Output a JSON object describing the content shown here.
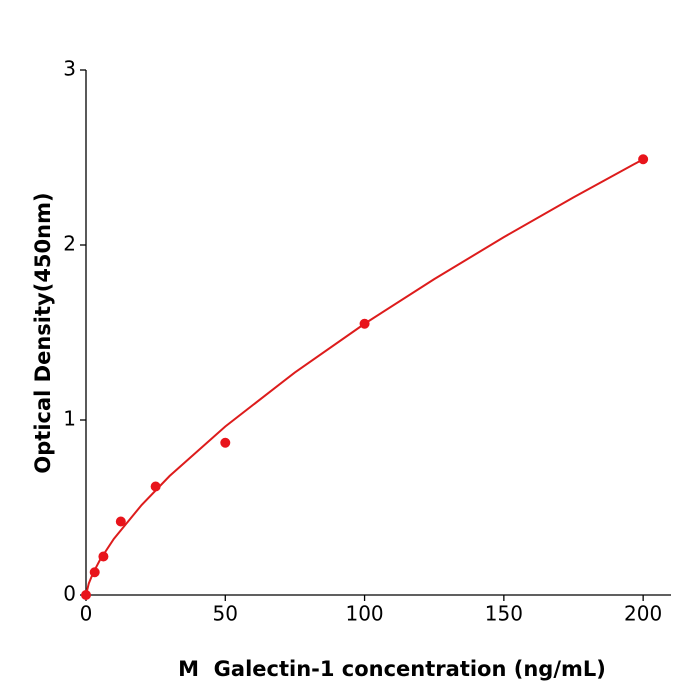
{
  "chart_data": {
    "type": "scatter",
    "x_label": "M  Galectin-1 concentration (ng/mL)",
    "y_label": "Optical Density(450nm)",
    "xlim": [
      0,
      210
    ],
    "ylim": [
      0,
      3
    ],
    "xticks": [
      0,
      50,
      100,
      150,
      200
    ],
    "yticks": [
      0,
      1,
      2,
      3
    ],
    "grid": false,
    "series": [
      {
        "color": "#e8141b",
        "x": [
          0,
          3.125,
          6.25,
          12.5,
          25,
          50,
          100,
          200
        ],
        "values": [
          0,
          0.13,
          0.22,
          0.42,
          0.62,
          0.87,
          1.55,
          2.49
        ]
      },
      {
        "type": "line",
        "color": "#dd1c1c",
        "x": [
          0,
          1,
          2.5,
          5,
          10,
          20,
          30,
          50,
          75,
          100,
          125,
          150,
          175,
          200
        ],
        "values": [
          0,
          0.066,
          0.124,
          0.2,
          0.321,
          0.515,
          0.68,
          0.963,
          1.272,
          1.55,
          1.805,
          2.045,
          2.272,
          2.49
        ]
      }
    ]
  }
}
